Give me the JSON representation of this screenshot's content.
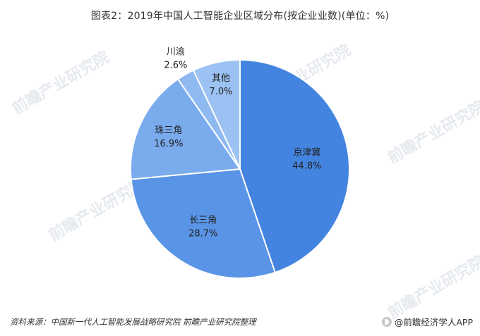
{
  "title": "图表2：2019年中国人工智能企业区域分布(按企业业数)(单位：%)",
  "source_text": "资料来源：中国新一代人工智能发展战略研究院 前瞻产业研究院整理",
  "brand_text": "@前瞻经济学人APP",
  "watermark_text": "前瞻产业研究院",
  "chart_data": {
    "type": "pie",
    "title": "图表2：2019年中国人工智能企业区域分布(按企业业数)(单位：%)",
    "start": "12 o'clock, clockwise",
    "slices": [
      {
        "label": "京津冀",
        "value": 44.8,
        "value_label": "44.8%",
        "color": "#4384e0"
      },
      {
        "label": "长三角",
        "value": 28.7,
        "value_label": "28.7%",
        "color": "#5a94e6"
      },
      {
        "label": "珠三角",
        "value": 16.9,
        "value_label": "16.9%",
        "color": "#7aabed"
      },
      {
        "label": "川渝",
        "value": 2.6,
        "value_label": "2.6%",
        "color": "#8fb9f1"
      },
      {
        "label": "其他",
        "value": 7.0,
        "value_label": "7.0%",
        "color": "#9cc2f3"
      }
    ]
  }
}
